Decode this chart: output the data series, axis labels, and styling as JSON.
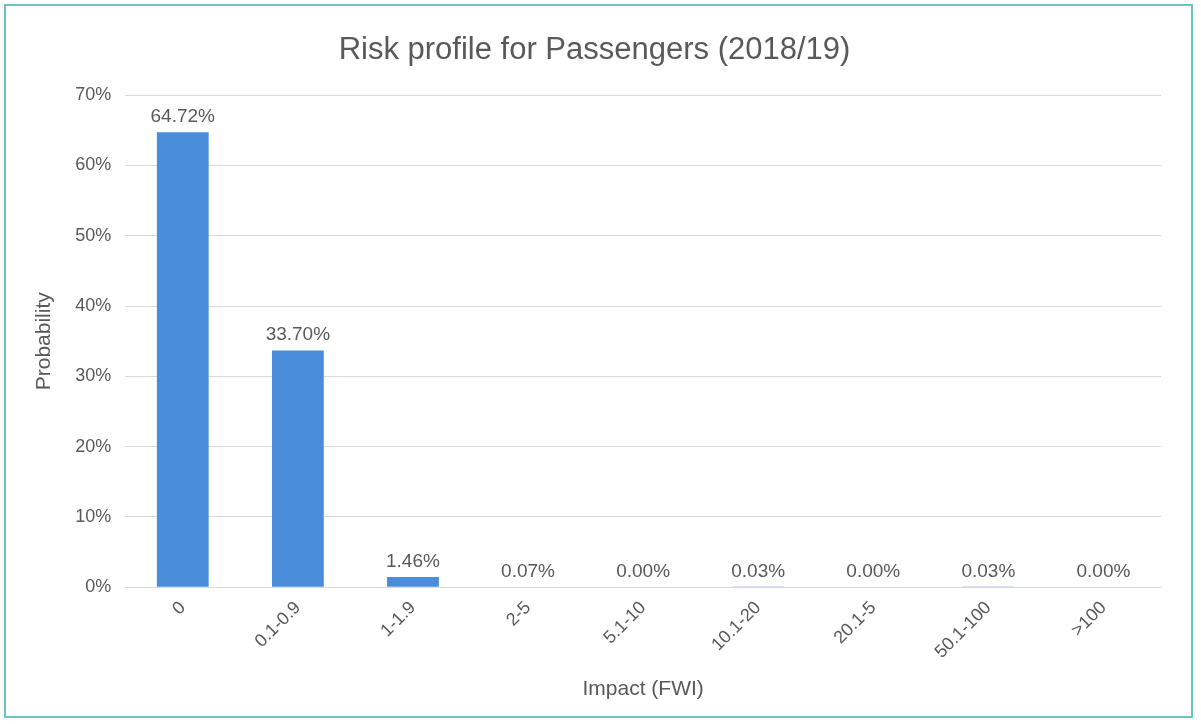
{
  "chart_data": {
    "type": "bar",
    "title": "Risk profile for Passengers (2018/19)",
    "xlabel": "Impact (FWI)",
    "ylabel": "Probability",
    "categories": [
      "0",
      "0.1-0.9",
      "1-1.9",
      "2-5",
      "5.1-10",
      "10.1-20",
      "20.1-5",
      "50.1-100",
      ">100"
    ],
    "values": [
      64.72,
      33.7,
      1.46,
      0.07,
      0,
      0.03,
      0,
      0.03,
      0
    ],
    "value_labels": [
      "64.72%",
      "33.70%",
      "1.46%",
      "0.07%",
      "0.00%",
      "0.03%",
      "0.00%",
      "0.03%",
      "0.00%"
    ],
    "color": "#4a8edb",
    "ylim": [
      0,
      70
    ],
    "yticks": [
      {
        "value": 0,
        "label": "0%"
      },
      {
        "value": 10,
        "label": "10%"
      },
      {
        "value": 20,
        "label": "20%"
      },
      {
        "value": 30,
        "label": "30%"
      },
      {
        "value": 40,
        "label": "40%"
      },
      {
        "value": 50,
        "label": "50%"
      },
      {
        "value": 60,
        "label": "60%"
      },
      {
        "value": 70,
        "label": "70%"
      }
    ],
    "grid": "y",
    "legend": false
  }
}
